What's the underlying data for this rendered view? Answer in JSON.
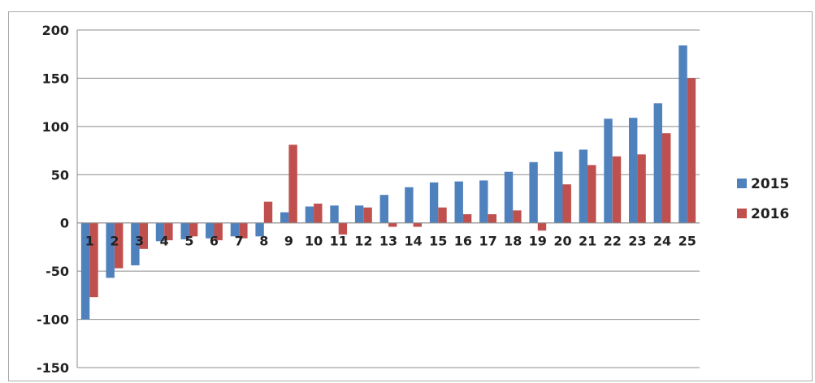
{
  "chart_data": {
    "type": "bar",
    "categories": [
      "1",
      "2",
      "3",
      "4",
      "5",
      "6",
      "7",
      "8",
      "9",
      "10",
      "11",
      "12",
      "13",
      "14",
      "15",
      "16",
      "17",
      "18",
      "19",
      "20",
      "21",
      "22",
      "23",
      "24",
      "25"
    ],
    "series": [
      {
        "name": "2015",
        "color": "#4f81bd",
        "values": [
          -100,
          -57,
          -44,
          -19,
          -17,
          -16,
          -14,
          -14,
          11,
          17,
          18,
          18,
          29,
          37,
          42,
          43,
          44,
          53,
          63,
          74,
          76,
          108,
          109,
          124,
          184
        ]
      },
      {
        "name": "2016",
        "color": "#c0504d",
        "values": [
          -77,
          -47,
          -27,
          -18,
          -14,
          -18,
          -16,
          22,
          81,
          20,
          -12,
          16,
          -4,
          -4,
          16,
          9,
          9,
          13,
          -8,
          40,
          60,
          69,
          71,
          93,
          150
        ]
      }
    ],
    "ylim": [
      -150,
      200
    ],
    "yticks": [
      200,
      150,
      100,
      50,
      0,
      -50,
      -100,
      -150
    ],
    "grid": true,
    "legend": "right",
    "title": "",
    "xlabel": "",
    "ylabel": ""
  }
}
